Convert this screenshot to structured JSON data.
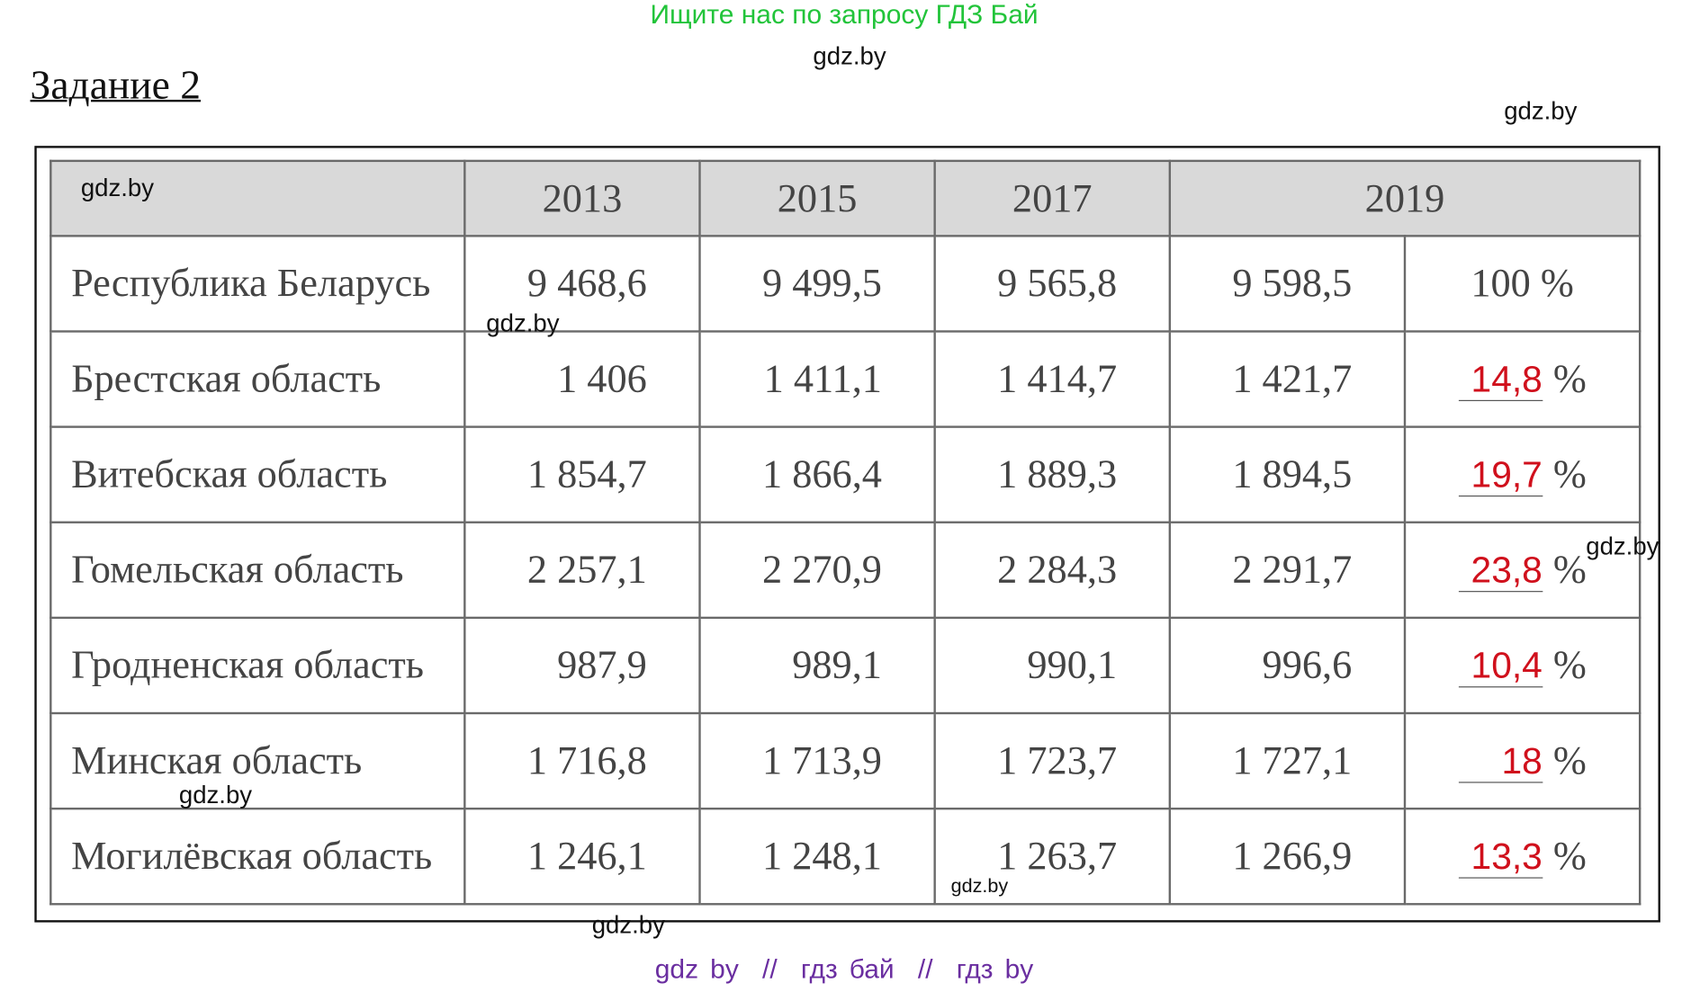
{
  "header": {
    "search_hint": "Ищите нас по запросу ГДЗ Бай",
    "site": "gdz.by"
  },
  "task_title": "Задание 2",
  "table": {
    "years": [
      "2013",
      "2015",
      "2017",
      "2019"
    ],
    "rows": [
      {
        "name": "Республика Беларусь",
        "values": [
          "9 468,6",
          "9 499,5",
          "9 565,8",
          "9 598,5"
        ],
        "share": "100 %"
      },
      {
        "name": "Брестская область",
        "values": [
          "1 406",
          "1 411,1",
          "1 414,7",
          "1 421,7"
        ],
        "share": "14,8",
        "unit": "%"
      },
      {
        "name": "Витебская область",
        "values": [
          "1 854,7",
          "1 866,4",
          "1 889,3",
          "1 894,5"
        ],
        "share": "19,7",
        "unit": "%"
      },
      {
        "name": "Гомельская область",
        "values": [
          "2 257,1",
          "2 270,9",
          "2 284,3",
          "2 291,7"
        ],
        "share": "23,8",
        "unit": "%"
      },
      {
        "name": "Гродненская область",
        "values": [
          "987,9",
          "989,1",
          "990,1",
          "996,6"
        ],
        "share": "10,4",
        "unit": "%"
      },
      {
        "name": "Минская область",
        "values": [
          "1 716,8",
          "1 713,9",
          "1 723,7",
          "1 727,1"
        ],
        "share": "18",
        "unit": "%"
      },
      {
        "name": "Могилёвская область",
        "values": [
          "1 246,1",
          "1 248,1",
          "1 263,7",
          "1 266,9"
        ],
        "share": "13,3",
        "unit": "%"
      }
    ]
  },
  "watermarks": [
    "gdz.by",
    "gdz.by",
    "gdz.by",
    "gdz.by",
    "gdz.by",
    "gdz.by",
    "gdz.by"
  ],
  "footer": "gdz by  //  гдз бай  //  гдз by"
}
